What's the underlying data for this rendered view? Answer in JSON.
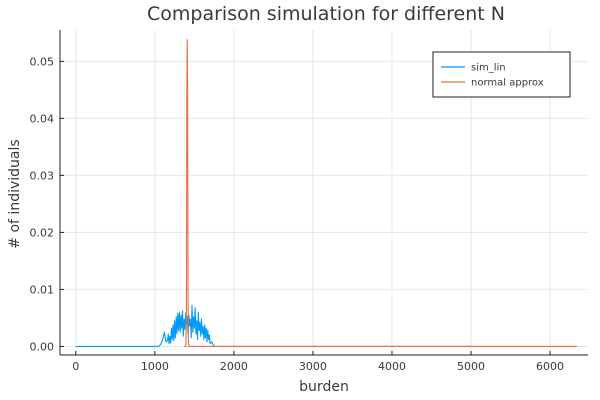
{
  "chart_data": {
    "type": "line",
    "title": "Comparison simulation for different N",
    "xlabel": "burden",
    "ylabel": "# of individuals",
    "xlim": [
      -200,
      6480
    ],
    "ylim": [
      -0.0015,
      0.0555
    ],
    "xticks": [
      0,
      1000,
      2000,
      3000,
      4000,
      5000,
      6000
    ],
    "xtick_labels": [
      "0",
      "1000",
      "2000",
      "3000",
      "4000",
      "5000",
      "6000"
    ],
    "yticks": [
      0.0,
      0.01,
      0.02,
      0.03,
      0.04,
      0.05
    ],
    "ytick_labels": [
      "0.00",
      "0.01",
      "0.02",
      "0.03",
      "0.04",
      "0.05"
    ],
    "grid": true,
    "legend_position": "top-right",
    "series": [
      {
        "name": "sim_lin",
        "color": "#009af9",
        "x": [
          0,
          1050,
          1080,
          1100,
          1120,
          1140,
          1160,
          1170,
          1180,
          1190,
          1200,
          1210,
          1220,
          1230,
          1240,
          1250,
          1260,
          1270,
          1280,
          1290,
          1300,
          1310,
          1320,
          1330,
          1340,
          1350,
          1360,
          1370,
          1380,
          1390,
          1400,
          1410,
          1420,
          1430,
          1440,
          1450,
          1460,
          1470,
          1480,
          1490,
          1500,
          1510,
          1520,
          1530,
          1540,
          1550,
          1560,
          1570,
          1580,
          1590,
          1600,
          1610,
          1620,
          1630,
          1640,
          1650,
          1660,
          1670,
          1680,
          1690,
          1700,
          1720,
          1750,
          5000
        ],
        "y": [
          0,
          0,
          0.0005,
          0.0012,
          0.0025,
          0.0008,
          0.001,
          0.0022,
          0.0005,
          0.0018,
          0.0006,
          0.0032,
          0.0012,
          0.0038,
          0.001,
          0.0045,
          0.0015,
          0.0052,
          0.0022,
          0.0058,
          0.0028,
          0.006,
          0.0025,
          0.0055,
          0.0032,
          0.0062,
          0.0018,
          0.0048,
          0.003,
          0.0058,
          0.0038,
          0.0052,
          0.0022,
          0.0055,
          0.0036,
          0.0048,
          0.0015,
          0.0072,
          0.0025,
          0.0052,
          0.0032,
          0.0068,
          0.0022,
          0.0045,
          0.0012,
          0.006,
          0.0028,
          0.0042,
          0.0018,
          0.0048,
          0.0022,
          0.0035,
          0.0012,
          0.0038,
          0.0015,
          0.0032,
          0.0008,
          0.0028,
          0.0012,
          0.002,
          0.0005,
          0.0008,
          0,
          0
        ]
      },
      {
        "name": "normal approx",
        "color": "#e26f46",
        "x": [
          1370,
          1385,
          1390,
          1395,
          1400,
          1405,
          1410,
          1415,
          1420,
          1425,
          1430,
          1440,
          6340
        ],
        "y": [
          0,
          0,
          0,
          0.001,
          0.008,
          0.045,
          0.0538,
          0.045,
          0.008,
          0.001,
          0,
          0,
          0
        ]
      }
    ]
  }
}
